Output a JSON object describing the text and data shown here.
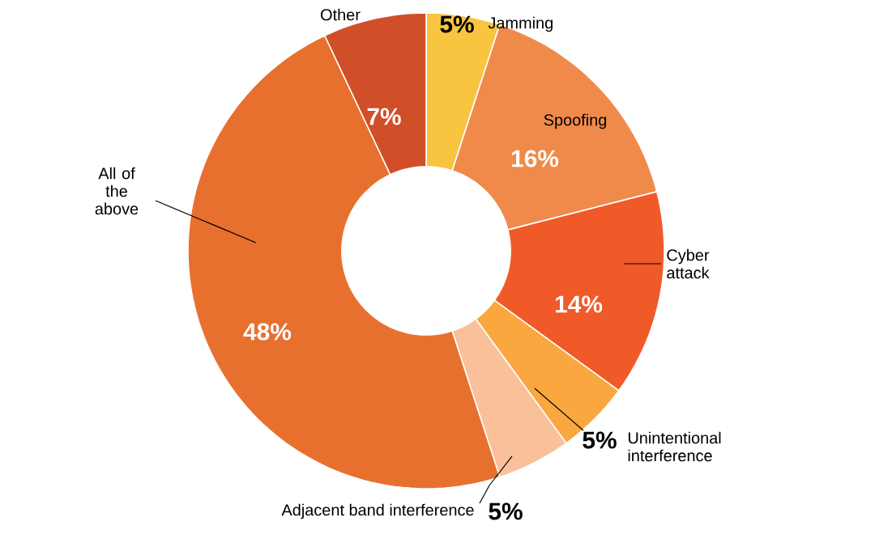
{
  "chart_data": {
    "type": "donut",
    "categories": [
      "Jamming",
      "Spoofing",
      "Cyber attack",
      "Unintentional interference",
      "Adjacent band interference",
      "All of the above",
      "Other"
    ],
    "values": [
      5,
      16,
      14,
      5,
      5,
      48,
      7
    ],
    "colors": [
      "#f9c440",
      "#f08a4b",
      "#f05a28",
      "#f9a73e",
      "#f9c09a",
      "#e8702e",
      "#d04e28"
    ],
    "value_labels": [
      "5%",
      "16%",
      "14%",
      "5%",
      "5%",
      "48%",
      "7%"
    ]
  }
}
